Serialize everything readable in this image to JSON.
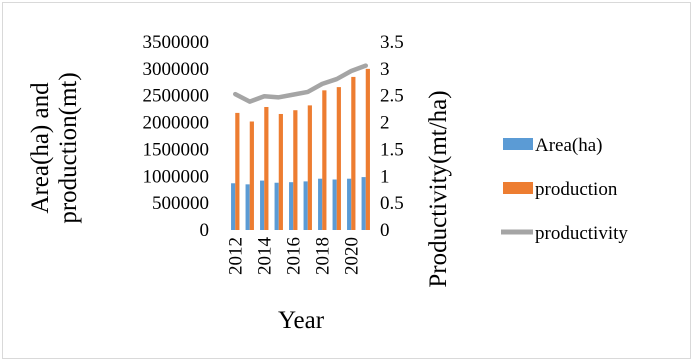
{
  "chart_data": {
    "type": "bar",
    "categories": [
      "2012",
      "2013",
      "2014",
      "2015",
      "2016",
      "2017",
      "2018",
      "2019",
      "2020",
      "2021"
    ],
    "x_tick_labels": [
      "2012",
      "2014",
      "2016",
      "2018",
      "2020"
    ],
    "xlabel": "Year",
    "ylabel_left_lines": [
      "Area(ha) and",
      "production(mt)"
    ],
    "ylabel_right": "Productivity(mt/ha)",
    "y_left_ticks": [
      "0",
      "500000",
      "1000000",
      "1500000",
      "2000000",
      "2500000",
      "3000000",
      "3500000"
    ],
    "y_right_ticks": [
      "0",
      "0.5",
      "1",
      "1.5",
      "2",
      "2.5",
      "3",
      "3.5"
    ],
    "ylim_left": [
      0,
      3500000
    ],
    "ylim_right": [
      0,
      3.5
    ],
    "grid": false,
    "legend_position": "right",
    "series": [
      {
        "name": "Area(ha)",
        "type": "bar",
        "axis": "left",
        "color": "#5b9bd5",
        "values": [
          870000,
          850000,
          920000,
          880000,
          890000,
          905000,
          955000,
          940000,
          955000,
          985000
        ]
      },
      {
        "name": "production",
        "type": "bar",
        "axis": "left",
        "color": "#ed7d31",
        "values": [
          2180000,
          2020000,
          2290000,
          2160000,
          2230000,
          2320000,
          2600000,
          2660000,
          2850000,
          3000000
        ]
      },
      {
        "name": "productivity",
        "type": "line",
        "axis": "right",
        "color": "#a5a5a5",
        "values": [
          2.53,
          2.39,
          2.49,
          2.47,
          2.52,
          2.57,
          2.72,
          2.81,
          2.96,
          3.06
        ]
      }
    ]
  }
}
